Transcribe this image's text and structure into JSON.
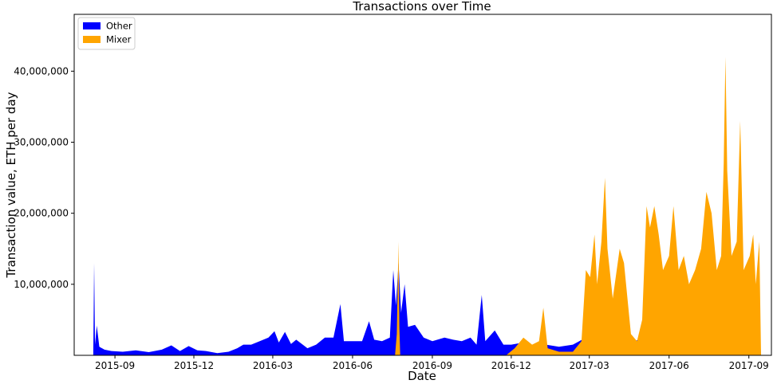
{
  "chart_data": {
    "type": "area",
    "stacked": true,
    "title": "Transactions over Time",
    "xlabel": "Date",
    "ylabel": "Transaction value, ETH per day",
    "x_ticks": [
      "2015-09",
      "2015-12",
      "2016-03",
      "2016-06",
      "2016-09",
      "2016-12",
      "2017-03",
      "2017-06",
      "2017-09"
    ],
    "x_tick_dates": [
      "2015-09-01",
      "2015-12-01",
      "2016-03-01",
      "2016-06-01",
      "2016-09-01",
      "2016-12-01",
      "2017-03-01",
      "2017-06-01",
      "2017-09-01"
    ],
    "y_ticks": [
      "10,000,000",
      "20,000,000",
      "30,000,000",
      "40,000,000"
    ],
    "y_tick_values": [
      10000000,
      20000000,
      30000000,
      40000000
    ],
    "xlim": [
      "2015-07-16",
      "2017-09-27"
    ],
    "ylim": [
      0,
      48000000
    ],
    "grid": false,
    "legend_position": "top-left",
    "series": [
      {
        "name": "Other",
        "color": "#0000ff",
        "points": [
          [
            "2015-08-07",
            0
          ],
          [
            "2015-08-08",
            13000000
          ],
          [
            "2015-08-09",
            1500000
          ],
          [
            "2015-08-11",
            4200000
          ],
          [
            "2015-08-14",
            1200000
          ],
          [
            "2015-08-20",
            800000
          ],
          [
            "2015-08-28",
            600000
          ],
          [
            "2015-09-10",
            500000
          ],
          [
            "2015-09-25",
            700000
          ],
          [
            "2015-10-10",
            450000
          ],
          [
            "2015-10-25",
            800000
          ],
          [
            "2015-11-05",
            1400000
          ],
          [
            "2015-11-15",
            600000
          ],
          [
            "2015-11-25",
            1300000
          ],
          [
            "2015-12-05",
            700000
          ],
          [
            "2015-12-15",
            600000
          ],
          [
            "2015-12-28",
            300000
          ],
          [
            "2016-01-10",
            500000
          ],
          [
            "2016-01-20",
            1000000
          ],
          [
            "2016-01-27",
            1500000
          ],
          [
            "2016-02-05",
            1500000
          ],
          [
            "2016-02-15",
            2000000
          ],
          [
            "2016-02-25",
            2500000
          ],
          [
            "2016-03-03",
            3400000
          ],
          [
            "2016-03-08",
            1800000
          ],
          [
            "2016-03-15",
            3300000
          ],
          [
            "2016-03-22",
            1600000
          ],
          [
            "2016-03-28",
            2200000
          ],
          [
            "2016-04-10",
            1000000
          ],
          [
            "2016-04-20",
            1500000
          ],
          [
            "2016-04-30",
            2500000
          ],
          [
            "2016-05-10",
            2500000
          ],
          [
            "2016-05-18",
            7200000
          ],
          [
            "2016-05-22",
            2000000
          ],
          [
            "2016-06-01",
            2000000
          ],
          [
            "2016-06-12",
            2000000
          ],
          [
            "2016-06-20",
            4800000
          ],
          [
            "2016-06-26",
            2200000
          ],
          [
            "2016-07-05",
            2000000
          ],
          [
            "2016-07-14",
            2500000
          ],
          [
            "2016-07-18",
            12000000
          ],
          [
            "2016-07-21",
            7000000
          ],
          [
            "2016-07-24",
            13000000
          ],
          [
            "2016-07-27",
            6000000
          ],
          [
            "2016-07-31",
            10000000
          ],
          [
            "2016-08-04",
            4000000
          ],
          [
            "2016-08-12",
            4300000
          ],
          [
            "2016-08-22",
            2500000
          ],
          [
            "2016-09-01",
            2000000
          ],
          [
            "2016-09-15",
            2500000
          ],
          [
            "2016-09-25",
            2200000
          ],
          [
            "2016-10-05",
            2000000
          ],
          [
            "2016-10-15",
            2500000
          ],
          [
            "2016-10-22",
            1500000
          ],
          [
            "2016-10-28",
            8500000
          ],
          [
            "2016-11-01",
            2000000
          ],
          [
            "2016-11-12",
            3500000
          ],
          [
            "2016-11-22",
            1500000
          ],
          [
            "2016-12-01",
            1500000
          ],
          [
            "2016-12-15",
            1800000
          ],
          [
            "2016-12-28",
            1300000
          ],
          [
            "2017-01-10",
            1500000
          ],
          [
            "2017-01-25",
            1200000
          ],
          [
            "2017-02-10",
            1500000
          ],
          [
            "2017-02-25",
            2500000
          ],
          [
            "2017-03-05",
            3000000
          ],
          [
            "2017-03-15",
            3500000
          ],
          [
            "2017-03-25",
            5800000
          ],
          [
            "2017-04-05",
            2500000
          ],
          [
            "2017-04-20",
            1800000
          ],
          [
            "2017-05-01",
            2500000
          ],
          [
            "2017-05-15",
            3000000
          ],
          [
            "2017-06-01",
            3500000
          ],
          [
            "2017-06-15",
            3000000
          ],
          [
            "2017-07-01",
            2500000
          ],
          [
            "2017-07-15",
            2500000
          ],
          [
            "2017-07-25",
            3000000
          ],
          [
            "2017-08-05",
            3000000
          ],
          [
            "2017-08-15",
            2500000
          ],
          [
            "2017-08-25",
            3000000
          ],
          [
            "2017-09-01",
            3500000
          ],
          [
            "2017-09-10",
            2500000
          ],
          [
            "2017-09-14",
            2000000
          ],
          [
            "2017-09-15",
            0
          ]
        ]
      },
      {
        "name": "Mixer",
        "color": "#ffa500",
        "points": [
          [
            "2016-07-20",
            0
          ],
          [
            "2016-07-22",
            3000000
          ],
          [
            "2016-07-24",
            16000000
          ],
          [
            "2016-07-25",
            4000000
          ],
          [
            "2016-07-26",
            0
          ],
          [
            "2016-11-25",
            0
          ],
          [
            "2016-12-05",
            1000000
          ],
          [
            "2016-12-15",
            2500000
          ],
          [
            "2016-12-25",
            1500000
          ],
          [
            "2017-01-02",
            2000000
          ],
          [
            "2017-01-07",
            6700000
          ],
          [
            "2017-01-12",
            1000000
          ],
          [
            "2017-01-25",
            500000
          ],
          [
            "2017-02-10",
            500000
          ],
          [
            "2017-02-20",
            2000000
          ],
          [
            "2017-02-25",
            12000000
          ],
          [
            "2017-03-02",
            11000000
          ],
          [
            "2017-03-07",
            17000000
          ],
          [
            "2017-03-10",
            10000000
          ],
          [
            "2017-03-15",
            16000000
          ],
          [
            "2017-03-19",
            25000000
          ],
          [
            "2017-03-22",
            15000000
          ],
          [
            "2017-03-28",
            8000000
          ],
          [
            "2017-04-05",
            15000000
          ],
          [
            "2017-04-10",
            13000000
          ],
          [
            "2017-04-18",
            3000000
          ],
          [
            "2017-04-25",
            2000000
          ],
          [
            "2017-05-01",
            5000000
          ],
          [
            "2017-05-06",
            21000000
          ],
          [
            "2017-05-10",
            18000000
          ],
          [
            "2017-05-15",
            21000000
          ],
          [
            "2017-05-20",
            17000000
          ],
          [
            "2017-05-25",
            12000000
          ],
          [
            "2017-06-01",
            14000000
          ],
          [
            "2017-06-06",
            21000000
          ],
          [
            "2017-06-12",
            12000000
          ],
          [
            "2017-06-18",
            14000000
          ],
          [
            "2017-06-24",
            10000000
          ],
          [
            "2017-07-01",
            12000000
          ],
          [
            "2017-07-08",
            15000000
          ],
          [
            "2017-07-14",
            23000000
          ],
          [
            "2017-07-20",
            20000000
          ],
          [
            "2017-07-26",
            12000000
          ],
          [
            "2017-07-31",
            14000000
          ],
          [
            "2017-08-03",
            27000000
          ],
          [
            "2017-08-05",
            42000000
          ],
          [
            "2017-08-07",
            26000000
          ],
          [
            "2017-08-12",
            14000000
          ],
          [
            "2017-08-18",
            16000000
          ],
          [
            "2017-08-22",
            33000000
          ],
          [
            "2017-08-26",
            12000000
          ],
          [
            "2017-09-02",
            14000000
          ],
          [
            "2017-09-06",
            17000000
          ],
          [
            "2017-09-09",
            10000000
          ],
          [
            "2017-09-13",
            16000000
          ],
          [
            "2017-09-15",
            0
          ]
        ]
      }
    ]
  }
}
